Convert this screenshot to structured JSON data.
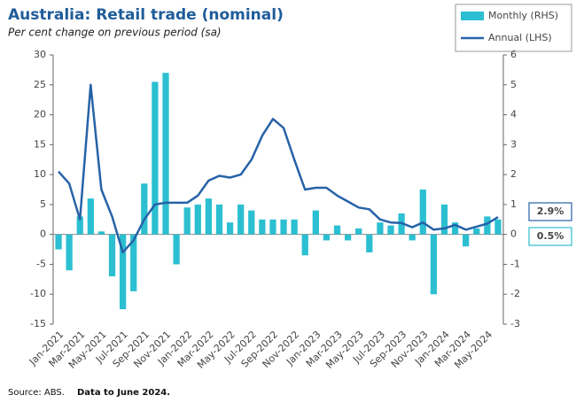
{
  "chart_data": {
    "type": "combo",
    "title": "Australia: Retail trade (nominal)",
    "subtitle": "Per cent change on previous period (sa)",
    "source": "Source: ABS.",
    "note": "Data to June 2024.",
    "categories": [
      "Jan-2021",
      null,
      "Mar-2021",
      null,
      "May-2021",
      null,
      "Jul-2021",
      null,
      "Sep-2021",
      null,
      "Nov-2021",
      null,
      "Jan-2022",
      null,
      "Mar-2022",
      null,
      "May-2022",
      null,
      "Jul-2022",
      null,
      "Sep-2022",
      null,
      "Nov-2022",
      null,
      "Jan-2023",
      null,
      "Mar-2023",
      null,
      "May-2023",
      null,
      "Jul-2023",
      null,
      "Sep-2023",
      null,
      "Nov-2023",
      null,
      "Jan-2024",
      null,
      "Mar-2024",
      null,
      "May-2024",
      null
    ],
    "series": [
      {
        "name": "Monthly (RHS)",
        "type": "bar",
        "axis": "y2",
        "color": "#2bbfd1",
        "values": [
          -0.5,
          -1.2,
          0.6,
          1.2,
          0.1,
          -1.4,
          -2.5,
          -1.9,
          1.7,
          5.1,
          5.4,
          -1.0,
          0.9,
          1.0,
          1.2,
          1.0,
          0.4,
          1.0,
          0.8,
          0.5,
          0.5,
          0.5,
          0.5,
          -0.7,
          0.8,
          -0.2,
          0.3,
          -0.2,
          0.2,
          -0.6,
          0.4,
          0.3,
          0.7,
          -0.2,
          1.5,
          -2.0,
          1.0,
          0.4,
          -0.4,
          0.2,
          0.6,
          0.5
        ],
        "value_labels": [
          null,
          null,
          null,
          null,
          null,
          null,
          null,
          null,
          null,
          null,
          null,
          null,
          null,
          null,
          null,
          null,
          null,
          null,
          null,
          null,
          null,
          null,
          null,
          null,
          null,
          null,
          null,
          null,
          null,
          null,
          null,
          null,
          null,
          null,
          null,
          null,
          null,
          null,
          null,
          null,
          null,
          "0.5%"
        ]
      },
      {
        "name": "Annual (LHS)",
        "type": "line",
        "color": "#2762a8",
        "values": [
          10.5,
          8.5,
          2.5,
          25,
          7.5,
          3,
          -3,
          -1,
          2.5,
          5,
          5.3,
          5.3,
          5.3,
          6.5,
          9,
          9.8,
          9.5,
          10,
          12.5,
          16.5,
          19.3,
          17.8,
          12.5,
          7.5,
          7.8,
          7.8,
          6.5,
          5.5,
          4.5,
          4.2,
          2.5,
          2,
          1.9,
          1.2,
          2.0,
          0.8,
          1.0,
          1.6,
          0.8,
          1.3,
          1.8,
          2.9
        ],
        "value_labels": [
          null,
          null,
          null,
          null,
          null,
          null,
          null,
          null,
          null,
          null,
          null,
          null,
          null,
          null,
          null,
          null,
          null,
          null,
          null,
          null,
          null,
          null,
          null,
          null,
          null,
          null,
          null,
          null,
          null,
          null,
          null,
          null,
          null,
          null,
          null,
          null,
          null,
          null,
          null,
          null,
          null,
          "2.9%"
        ]
      }
    ],
    "ylim": [
      -15,
      30
    ],
    "yticks": [
      -15,
      -10,
      -5,
      0,
      5,
      10,
      15,
      20,
      25,
      30
    ],
    "y2lim": [
      -3,
      6
    ],
    "y2ticks": [
      -3,
      -2,
      -1,
      0,
      1,
      2,
      3,
      4,
      5,
      6
    ]
  }
}
